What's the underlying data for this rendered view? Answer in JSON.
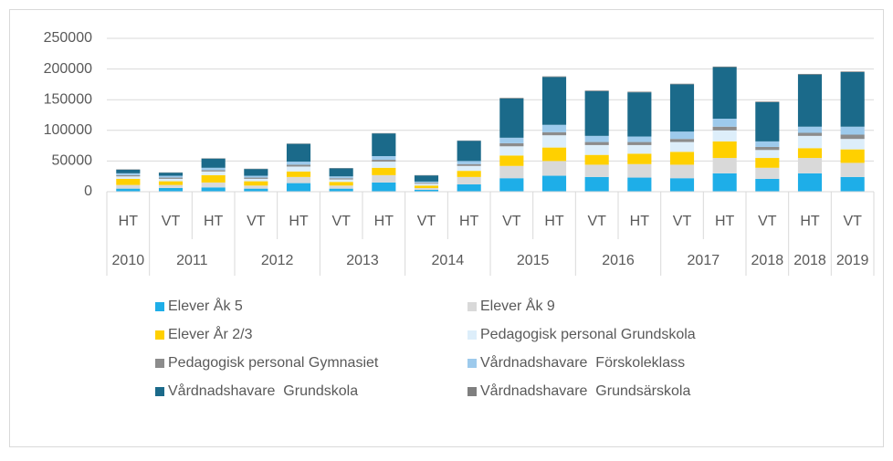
{
  "chart_data": {
    "type": "stacked_bar",
    "groups": [
      {
        "name": "2010",
        "categories": [
          "HT"
        ]
      },
      {
        "name": "2011",
        "categories": [
          "VT",
          "HT"
        ]
      },
      {
        "name": "2012",
        "categories": [
          "VT",
          "HT"
        ]
      },
      {
        "name": "2013",
        "categories": [
          "VT",
          "HT"
        ]
      },
      {
        "name": "2014",
        "categories": [
          "VT",
          "HT"
        ]
      },
      {
        "name": "2015",
        "categories": [
          "VT",
          "HT"
        ]
      },
      {
        "name": "2016",
        "categories": [
          "VT",
          "HT"
        ]
      },
      {
        "name": "2017",
        "categories": [
          "VT",
          "HT"
        ]
      },
      {
        "name": "2018",
        "categories": [
          "VT"
        ]
      },
      {
        "name": "2018",
        "categories": [
          "HT"
        ]
      },
      {
        "name": "2019",
        "categories": [
          "VT"
        ]
      }
    ],
    "series": [
      {
        "name": "Elever Åk 5",
        "color": "#1eaee8",
        "values": [
          5000,
          6000,
          7000,
          5000,
          14000,
          5000,
          15000,
          3000,
          12000,
          22000,
          26000,
          24000,
          23000,
          22000,
          30000,
          21000,
          30000,
          24000
        ]
      },
      {
        "name": "Elever Åk 9",
        "color": "#d9d9d9",
        "values": [
          6000,
          5000,
          8000,
          5000,
          10000,
          5000,
          12000,
          3000,
          12000,
          20000,
          24000,
          20000,
          22000,
          22000,
          25000,
          18000,
          25000,
          23000
        ]
      },
      {
        "name": "Elever År 2/3",
        "color": "#ffd000",
        "values": [
          10000,
          6000,
          12000,
          7000,
          9000,
          6000,
          12000,
          4000,
          10000,
          17000,
          22000,
          16000,
          17000,
          21000,
          27000,
          16000,
          16000,
          22000
        ]
      },
      {
        "name": "Pedagogisk personal Grundskola",
        "color": "#ddeefa",
        "values": [
          4000,
          4000,
          6000,
          4000,
          8000,
          4000,
          10000,
          3000,
          8000,
          15000,
          20000,
          16000,
          14000,
          16000,
          18000,
          13000,
          20000,
          17000
        ]
      },
      {
        "name": "Pedagogisk personal Gymnasiet",
        "color": "#8c8c8c",
        "values": [
          2000,
          2000,
          2000,
          2000,
          3000,
          2000,
          3000,
          1500,
          3000,
          5000,
          5000,
          5000,
          5000,
          5000,
          6000,
          5000,
          5000,
          7000
        ]
      },
      {
        "name": "Vårdnadshavare  Förskoleklass",
        "color": "#9dcaec",
        "values": [
          3000,
          3000,
          4000,
          3000,
          5000,
          3000,
          6000,
          2000,
          5000,
          9000,
          12000,
          10000,
          9000,
          12000,
          13000,
          9000,
          10000,
          13000
        ]
      },
      {
        "name": "Vårdnadshavare  Grundskola",
        "color": "#1b6a8a",
        "values": [
          6000,
          5000,
          15000,
          11000,
          29000,
          13000,
          37000,
          10000,
          33000,
          64000,
          78000,
          73000,
          72000,
          77000,
          84000,
          64000,
          85000,
          89000
        ]
      },
      {
        "name": "Vårdnadshavare  Grundsärskola",
        "color": "#7f7f7f",
        "values": [
          500,
          500,
          500,
          500,
          500,
          500,
          500,
          500,
          500,
          1000,
          1000,
          1000,
          1000,
          1000,
          1000,
          1000,
          1000,
          1000
        ]
      }
    ],
    "ylim": [
      0,
      250000
    ],
    "yticks": [
      0,
      50000,
      100000,
      150000,
      200000,
      250000
    ],
    "grid": true,
    "legend": "bottom"
  }
}
